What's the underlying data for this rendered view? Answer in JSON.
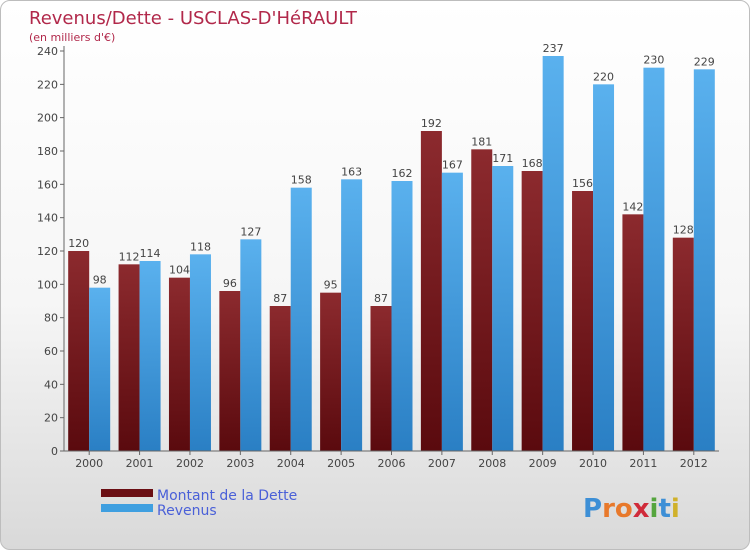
{
  "chart_data": {
    "type": "bar",
    "title": "Revenus/Dette - USCLAS-D'HéRAULT",
    "subtitle": "(en milliers d'€)",
    "categories": [
      "2000",
      "2001",
      "2002",
      "2003",
      "2004",
      "2005",
      "2006",
      "2007",
      "2008",
      "2009",
      "2010",
      "2011",
      "2012"
    ],
    "series": [
      {
        "name": "Montant de la Dette",
        "values": [
          120,
          112,
          104,
          96,
          87,
          95,
          87,
          192,
          181,
          168,
          156,
          142,
          128
        ],
        "color": "#7a1e22"
      },
      {
        "name": "Revenus",
        "values": [
          98,
          114,
          118,
          127,
          158,
          163,
          162,
          167,
          171,
          237,
          220,
          230,
          229
        ],
        "color": "#3f9fe0"
      }
    ],
    "yticks": [
      0,
      20,
      40,
      60,
      80,
      100,
      120,
      140,
      160,
      180,
      200,
      220,
      240
    ],
    "ylim": [
      0,
      240
    ],
    "grid": false,
    "legend_position": "bottom-left",
    "logo": "Proxiti"
  }
}
